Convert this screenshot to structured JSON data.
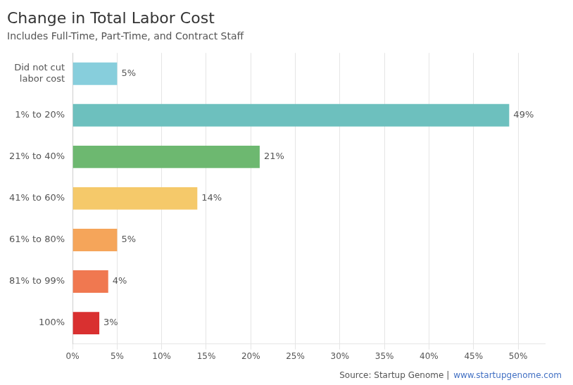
{
  "chart_data": {
    "type": "bar",
    "orientation": "horizontal",
    "title": "Change in Total Labor Cost",
    "subtitle": "Includes Full-Time, Part-Time, and Contract Staff",
    "categories": [
      "Did not cut\nlabor cost",
      "1% to 20%",
      "21% to 40%",
      "41% to 60%",
      "61% to 80%",
      "81% to 99%",
      "100%"
    ],
    "values": [
      5,
      49,
      21,
      14,
      5,
      4,
      3
    ],
    "value_labels": [
      "5%",
      "49%",
      "21%",
      "14%",
      "5%",
      "4%",
      "3%"
    ],
    "data_labels": true,
    "colors": [
      "#87CEDC",
      "#6DC0BE",
      "#6DB870",
      "#F5C96A",
      "#F5A55A",
      "#F07850",
      "#D93030"
    ],
    "xlim": [
      0,
      53
    ],
    "xticks": [
      {
        "value": 0,
        "label": "0%"
      },
      {
        "value": 5,
        "label": "5%"
      },
      {
        "value": 10,
        "label": "10%"
      },
      {
        "value": 15,
        "label": "15%"
      },
      {
        "value": 20,
        "label": "20%"
      },
      {
        "value": 25,
        "label": "25%"
      },
      {
        "value": 30,
        "label": "30%"
      },
      {
        "value": 35,
        "label": "35%"
      },
      {
        "value": 40,
        "label": "40%"
      },
      {
        "value": 45,
        "label": "45%"
      },
      {
        "value": 50,
        "label": "50%"
      }
    ],
    "grid": true,
    "annotations": [
      "Source: Startup Genome |",
      "www.startupgenome.com"
    ]
  }
}
